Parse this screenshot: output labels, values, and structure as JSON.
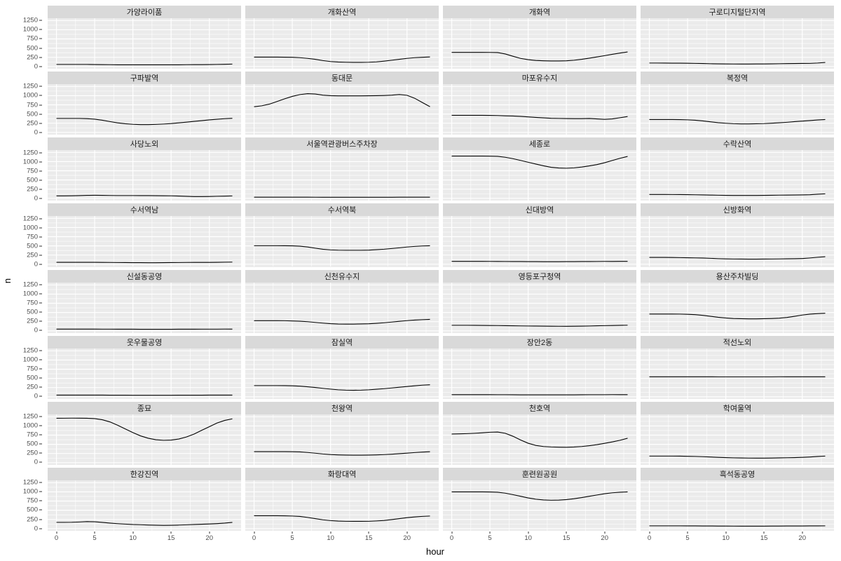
{
  "colors": {
    "page_bg": "#ffffff",
    "strip_bg": "#d9d9d9",
    "panel_bg": "#ebebeb",
    "grid_line": "#ffffff",
    "data_line": "#000000",
    "tick_label": "#4d4d4d",
    "strip_text": "#1a1a1a"
  },
  "chart_data": {
    "type": "line",
    "title": "",
    "xlabel": "hour",
    "ylabel": "n",
    "grid": true,
    "legend": "none",
    "facet_layout": {
      "rows": 8,
      "cols": 4
    },
    "x": [
      0,
      1,
      2,
      3,
      4,
      5,
      6,
      7,
      8,
      9,
      10,
      11,
      12,
      13,
      14,
      15,
      16,
      17,
      18,
      19,
      20,
      21,
      22,
      23
    ],
    "xlim": [
      0,
      23
    ],
    "xticks": [
      0,
      5,
      10,
      15,
      20
    ],
    "xticks_minor": [
      2.5,
      7.5,
      12.5,
      17.5,
      22.5
    ],
    "ylim": [
      0,
      1250
    ],
    "yticks": [
      0,
      250,
      500,
      750,
      1000,
      1250
    ],
    "yticks_minor": [
      125,
      375,
      625,
      875,
      1125
    ],
    "facets": [
      {
        "title": "가양라이품",
        "values": [
          55,
          55,
          55,
          55,
          55,
          52,
          50,
          48,
          45,
          45,
          45,
          45,
          45,
          45,
          45,
          45,
          45,
          48,
          50,
          50,
          52,
          55,
          60,
          65
        ]
      },
      {
        "title": "개화산역",
        "values": [
          255,
          255,
          255,
          255,
          253,
          250,
          240,
          220,
          195,
          160,
          135,
          120,
          115,
          112,
          112,
          115,
          125,
          145,
          170,
          195,
          220,
          240,
          250,
          260
        ]
      },
      {
        "title": "개화역",
        "values": [
          385,
          385,
          385,
          385,
          385,
          382,
          378,
          340,
          280,
          220,
          185,
          165,
          155,
          150,
          150,
          155,
          170,
          195,
          225,
          260,
          295,
          330,
          365,
          395
        ]
      },
      {
        "title": "구로디지털단지역",
        "values": [
          95,
          95,
          92,
          90,
          90,
          88,
          85,
          80,
          75,
          72,
          70,
          68,
          68,
          68,
          70,
          70,
          72,
          75,
          78,
          80,
          82,
          85,
          95,
          110
        ]
      },
      {
        "title": "구파발역",
        "values": [
          380,
          380,
          380,
          380,
          375,
          360,
          330,
          295,
          260,
          235,
          220,
          212,
          212,
          218,
          228,
          242,
          260,
          280,
          300,
          320,
          340,
          358,
          372,
          385
        ]
      },
      {
        "title": "동대문",
        "values": [
          700,
          725,
          770,
          840,
          915,
          980,
          1030,
          1055,
          1045,
          1015,
          1000,
          995,
          995,
          995,
          995,
          998,
          1000,
          1005,
          1015,
          1030,
          1010,
          930,
          815,
          700
        ]
      },
      {
        "title": "마포유수지",
        "values": [
          465,
          465,
          465,
          465,
          465,
          462,
          458,
          452,
          445,
          435,
          422,
          408,
          395,
          385,
          380,
          376,
          374,
          374,
          378,
          368,
          355,
          368,
          400,
          432
        ]
      },
      {
        "title": "복정역",
        "values": [
          350,
          350,
          350,
          350,
          348,
          342,
          330,
          312,
          288,
          265,
          248,
          238,
          232,
          232,
          236,
          240,
          250,
          262,
          276,
          292,
          308,
          322,
          338,
          350
        ]
      },
      {
        "title": "사당노외",
        "values": [
          68,
          68,
          70,
          74,
          80,
          82,
          80,
          77,
          75,
          75,
          75,
          74,
          73,
          72,
          70,
          68,
          62,
          54,
          48,
          48,
          50,
          55,
          60,
          66
        ]
      },
      {
        "title": "서울역관광버스주차장",
        "values": [
          32,
          32,
          32,
          32,
          32,
          32,
          32,
          31,
          30,
          30,
          30,
          30,
          30,
          30,
          30,
          30,
          30,
          30,
          30,
          31,
          31,
          32,
          32,
          32
        ]
      },
      {
        "title": "세종로",
        "values": [
          1150,
          1150,
          1150,
          1150,
          1150,
          1148,
          1142,
          1118,
          1080,
          1032,
          982,
          932,
          885,
          845,
          825,
          820,
          830,
          852,
          882,
          920,
          968,
          1030,
          1090,
          1140
        ]
      },
      {
        "title": "수락산역",
        "values": [
          105,
          105,
          105,
          104,
          102,
          100,
          96,
          92,
          88,
          84,
          81,
          79,
          78,
          78,
          79,
          80,
          83,
          86,
          88,
          90,
          93,
          98,
          112,
          122
        ]
      },
      {
        "title": "수서역남",
        "values": [
          52,
          52,
          52,
          52,
          52,
          52,
          50,
          48,
          46,
          44,
          43,
          42,
          40,
          40,
          42,
          44,
          46,
          48,
          50,
          50,
          50,
          53,
          56,
          58
        ]
      },
      {
        "title": "수서역북",
        "values": [
          505,
          505,
          505,
          505,
          503,
          500,
          492,
          470,
          438,
          408,
          390,
          382,
          380,
          380,
          380,
          385,
          395,
          410,
          428,
          448,
          468,
          485,
          497,
          503
        ]
      },
      {
        "title": "신대방역",
        "values": [
          78,
          78,
          78,
          78,
          78,
          77,
          76,
          75,
          74,
          73,
          72,
          71,
          70,
          70,
          70,
          71,
          72,
          73,
          74,
          75,
          76,
          77,
          78,
          79
        ]
      },
      {
        "title": "신방화역",
        "values": [
          185,
          185,
          185,
          183,
          180,
          177,
          173,
          168,
          160,
          152,
          146,
          142,
          139,
          138,
          138,
          139,
          141,
          144,
          147,
          150,
          156,
          170,
          190,
          205
        ]
      },
      {
        "title": "신설동공영",
        "values": [
          48,
          48,
          48,
          48,
          48,
          48,
          47,
          46,
          45,
          44,
          44,
          43,
          43,
          43,
          43,
          43,
          44,
          44,
          45,
          46,
          46,
          47,
          48,
          48
        ]
      },
      {
        "title": "신천유수지",
        "values": [
          278,
          278,
          278,
          277,
          275,
          270,
          262,
          248,
          230,
          210,
          195,
          186,
          183,
          183,
          188,
          194,
          205,
          220,
          240,
          260,
          278,
          293,
          305,
          312
        ]
      },
      {
        "title": "영등포구청역",
        "values": [
          152,
          152,
          152,
          150,
          148,
          146,
          143,
          140,
          138,
          135,
          132,
          130,
          128,
          126,
          124,
          124,
          126,
          129,
          133,
          138,
          142,
          146,
          149,
          153
        ]
      },
      {
        "title": "용산주차빌딩",
        "values": [
          458,
          458,
          458,
          458,
          456,
          452,
          442,
          422,
          396,
          370,
          350,
          336,
          330,
          327,
          327,
          330,
          336,
          346,
          366,
          396,
          430,
          455,
          470,
          480
        ]
      },
      {
        "title": "웃우물공영",
        "values": [
          45,
          45,
          45,
          45,
          45,
          45,
          44,
          43,
          42,
          42,
          41,
          41,
          41,
          41,
          41,
          41,
          42,
          42,
          43,
          43,
          44,
          44,
          45,
          45
        ]
      },
      {
        "title": "잠실역",
        "values": [
          305,
          305,
          305,
          305,
          302,
          298,
          288,
          272,
          252,
          230,
          208,
          190,
          180,
          176,
          180,
          190,
          204,
          220,
          240,
          260,
          280,
          298,
          315,
          328
        ]
      },
      {
        "title": "장안2동",
        "values": [
          58,
          58,
          58,
          58,
          58,
          57,
          56,
          55,
          54,
          53,
          52,
          52,
          52,
          52,
          52,
          52,
          53,
          54,
          55,
          55,
          56,
          57,
          58,
          58
        ]
      },
      {
        "title": "적선노외",
        "values": [
          545,
          545,
          545,
          545,
          545,
          545,
          545,
          544,
          544,
          543,
          543,
          543,
          543,
          543,
          543,
          543,
          543,
          544,
          544,
          544,
          545,
          545,
          545,
          545
        ]
      },
      {
        "title": "종묘",
        "values": [
          1210,
          1212,
          1213,
          1213,
          1210,
          1200,
          1170,
          1110,
          1020,
          920,
          820,
          730,
          665,
          625,
          610,
          615,
          645,
          700,
          780,
          880,
          980,
          1080,
          1150,
          1195
        ]
      },
      {
        "title": "천왕역",
        "values": [
          300,
          300,
          300,
          300,
          300,
          298,
          292,
          278,
          258,
          238,
          222,
          212,
          206,
          204,
          204,
          206,
          212,
          220,
          232,
          245,
          260,
          275,
          288,
          298
        ]
      },
      {
        "title": "천호역",
        "values": [
          780,
          785,
          792,
          800,
          815,
          830,
          835,
          800,
          720,
          620,
          530,
          470,
          440,
          428,
          422,
          420,
          426,
          440,
          462,
          492,
          528,
          565,
          610,
          665
        ]
      },
      {
        "title": "학여울역",
        "values": [
          180,
          180,
          180,
          180,
          178,
          175,
          170,
          163,
          155,
          146,
          138,
          132,
          128,
          125,
          124,
          124,
          126,
          130,
          134,
          138,
          145,
          155,
          168,
          180
        ]
      },
      {
        "title": "한강진역",
        "values": [
          170,
          170,
          172,
          180,
          190,
          185,
          168,
          150,
          135,
          122,
          112,
          105,
          98,
          92,
          88,
          90,
          96,
          104,
          112,
          118,
          126,
          136,
          150,
          168
        ]
      },
      {
        "title": "화랑대역",
        "values": [
          350,
          350,
          350,
          350,
          348,
          342,
          330,
          305,
          272,
          240,
          218,
          205,
          200,
          198,
          198,
          200,
          208,
          222,
          245,
          272,
          298,
          318,
          332,
          342
        ]
      },
      {
        "title": "훈련원공원",
        "values": [
          1000,
          1000,
          1000,
          1000,
          1000,
          998,
          990,
          965,
          925,
          880,
          835,
          800,
          780,
          772,
          775,
          790,
          815,
          845,
          880,
          915,
          950,
          975,
          990,
          1000
        ]
      },
      {
        "title": "흑석동공영",
        "values": [
          75,
          75,
          75,
          75,
          75,
          74,
          73,
          72,
          71,
          70,
          69,
          68,
          68,
          68,
          68,
          68,
          69,
          70,
          71,
          71,
          72,
          73,
          74,
          75
        ]
      }
    ]
  }
}
